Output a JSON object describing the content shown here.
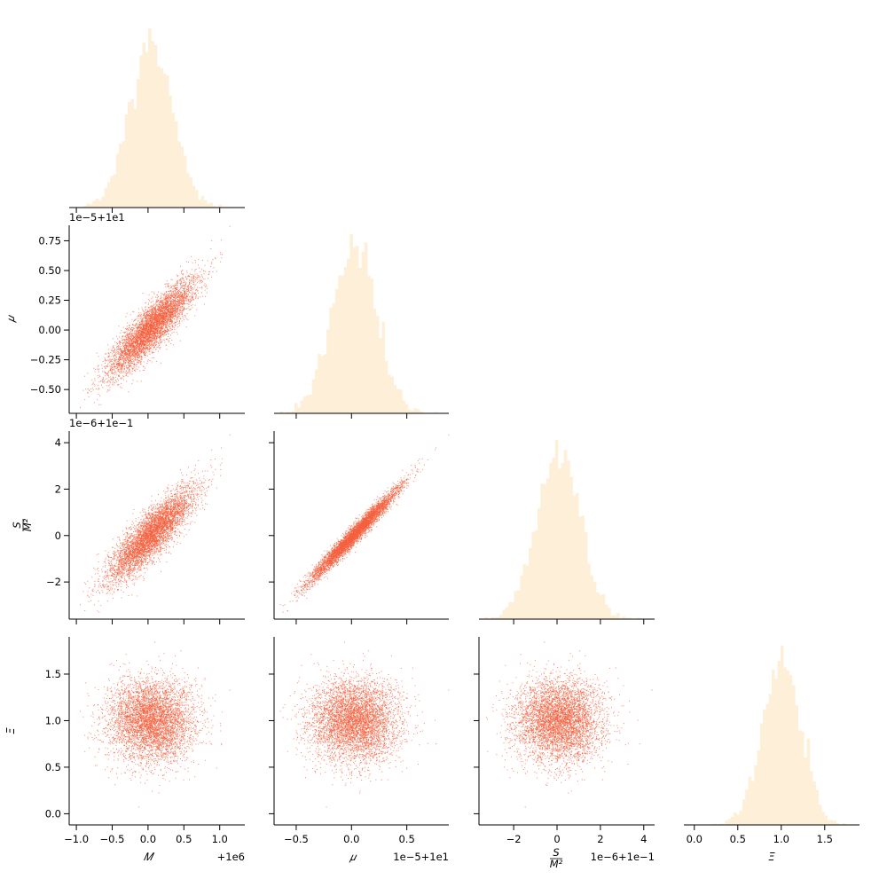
{
  "chart_data": {
    "type": "pairplot",
    "colors": {
      "hist": "#fdefd8",
      "scatter": "#f4603e",
      "axis": "#000000"
    },
    "variables": [
      {
        "name": "M",
        "display": "𝑀",
        "range": [
          -1.1,
          1.35
        ],
        "ticks": [
          -1.0,
          -0.5,
          0.0,
          0.5,
          1.0
        ],
        "tick_labels": [
          "−1.0",
          "−0.5",
          "0.0",
          "0.5",
          "1.0"
        ],
        "offset": "+1e6",
        "mean": 0.05,
        "sd": 0.3
      },
      {
        "name": "mu",
        "display": "𝜇",
        "range": [
          -0.7,
          0.88
        ],
        "ticks": [
          -0.5,
          -0.25,
          0.0,
          0.25,
          0.5,
          0.75
        ],
        "tick_labels": [
          "−0.50",
          "−0.25",
          "0.00",
          "0.25",
          "0.50",
          "0.75"
        ],
        "x_ticks": [
          -0.5,
          0.0,
          0.5
        ],
        "x_tick_labels": [
          "−0.5",
          "0.0",
          "0.5"
        ],
        "offset": "1e−5+1e1",
        "mean": 0.03,
        "sd": 0.2
      },
      {
        "name": "S_over_M2",
        "display_num": "S",
        "display_den": "M²",
        "range": [
          -3.6,
          4.5
        ],
        "ticks": [
          -2,
          0,
          2,
          4
        ],
        "tick_labels": [
          "−2",
          "0",
          "2",
          "4"
        ],
        "offset": "1e−6+1e−1",
        "mean": 0.1,
        "sd": 1.0
      },
      {
        "name": "Xi",
        "display": "Ξ",
        "range": [
          -0.12,
          1.9
        ],
        "ticks": [
          0.0,
          0.5,
          1.0,
          1.5
        ],
        "tick_labels": [
          "0.0",
          "0.5",
          "1.0",
          "1.5"
        ],
        "offset": "",
        "mean": 1.0,
        "sd": 0.22
      }
    ],
    "correlations": {
      "mu|M": 0.88,
      "S_over_M2|M": 0.86,
      "S_over_M2|mu": 0.98,
      "Xi|M": 0.0,
      "Xi|mu": 0.0,
      "Xi|S_over_M2": 0.0
    },
    "n_samples": 5000,
    "diagonal": "histogram",
    "lower": "scatter",
    "upper": "empty"
  }
}
